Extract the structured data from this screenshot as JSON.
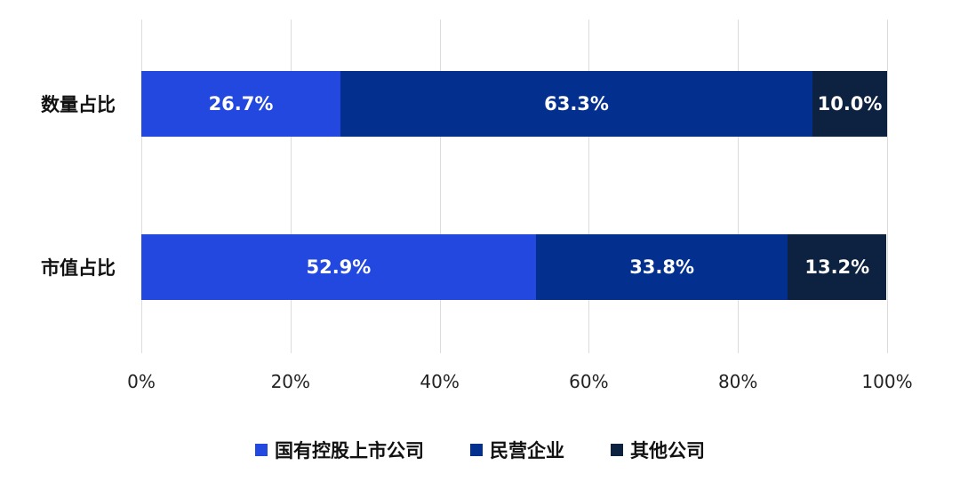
{
  "chart_data": {
    "type": "bar",
    "orientation": "horizontal",
    "stacked": true,
    "percent": true,
    "title": "",
    "xlabel": "",
    "ylabel": "",
    "xlim": [
      0,
      100
    ],
    "grid": true,
    "legend_position": "bottom",
    "categories": [
      "数量占比",
      "市值占比"
    ],
    "series": [
      {
        "name": "国有控股上市公司",
        "color": "#2348e0",
        "values": [
          26.7,
          52.9
        ],
        "labels": [
          "26.7%",
          "52.9%"
        ]
      },
      {
        "name": "民营企业",
        "color": "#03308f",
        "values": [
          63.3,
          33.8
        ],
        "labels": [
          "63.3%",
          "33.8%"
        ]
      },
      {
        "name": "其他公司",
        "color": "#0d2240",
        "values": [
          10.0,
          13.2
        ],
        "labels": [
          "10.0%",
          "13.2%"
        ]
      }
    ],
    "x_ticks": [
      "0%",
      "20%",
      "40%",
      "60%",
      "80%",
      "100%"
    ]
  }
}
